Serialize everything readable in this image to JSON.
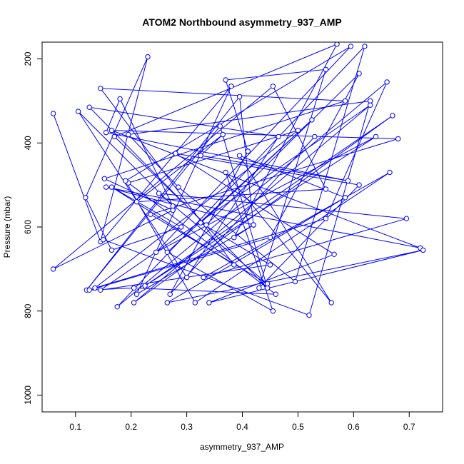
{
  "chart_data": {
    "type": "line",
    "title": "ATOM2 Northbound asymmetry_937_AMP",
    "xlabel": "asymmetry_937_AMP",
    "ylabel": "Pressure (mbar)",
    "xlim": [
      0.04,
      0.76
    ],
    "ylim": [
      1040,
      160
    ],
    "y_reversed": true,
    "x_ticks": [
      0.1,
      0.2,
      0.3,
      0.4,
      0.5,
      0.6,
      0.7
    ],
    "x_tick_labels": [
      "0.1",
      "0.2",
      "0.3",
      "0.4",
      "0.5",
      "0.6",
      "0.7"
    ],
    "y_ticks": [
      200,
      400,
      600,
      800,
      1000
    ],
    "y_tick_labels": [
      "200",
      "400",
      "600",
      "800",
      "1000"
    ],
    "grid": false,
    "series": [
      {
        "color": "#0000ff",
        "marker": "open-circle",
        "x": [
          0.06,
          0.145,
          0.23,
          0.118,
          0.165,
          0.29,
          0.165,
          0.385,
          0.145,
          0.585,
          0.152,
          0.275,
          0.06,
          0.455,
          0.55,
          0.21,
          0.365,
          0.325,
          0.59,
          0.155,
          0.18,
          0.275,
          0.105,
          0.3,
          0.465,
          0.125,
          0.445,
          0.36,
          0.12,
          0.395,
          0.42,
          0.385,
          0.57,
          0.17,
          0.335,
          0.61,
          0.45,
          0.125,
          0.205,
          0.46,
          0.195,
          0.5,
          0.135,
          0.55,
          0.66,
          0.175,
          0.62,
          0.495,
          0.285,
          0.195,
          0.63,
          0.52,
          0.15,
          0.38,
          0.21,
          0.42,
          0.155,
          0.72,
          0.165,
          0.68,
          0.235,
          0.445,
          0.25,
          0.695,
          0.33,
          0.665,
          0.315,
          0.19,
          0.595,
          0.245,
          0.64,
          0.225,
          0.67,
          0.205,
          0.63,
          0.145,
          0.45,
          0.325,
          0.525,
          0.265,
          0.455,
          0.37,
          0.56,
          0.395,
          0.585,
          0.265,
          0.725,
          0.34,
          0.565,
          0.28,
          0.61,
          0.43,
          0.55,
          0.37,
          0.41,
          0.27,
          0.53
        ],
        "y": [
          330,
          635,
          195,
          530,
          655,
          600,
          505,
          690,
          270,
          300,
          485,
          560,
          700,
          265,
          510,
          540,
          380,
          430,
          490,
          375,
          295,
          550,
          325,
          720,
          385,
          315,
          745,
          360,
          750,
          290,
          595,
          625,
          165,
          385,
          595,
          235,
          625,
          750,
          745,
          760,
          495,
          370,
          745,
          580,
          255,
          790,
          170,
          730,
          505,
          380,
          300,
          810,
          630,
          265,
          760,
          595,
          505,
          650,
          370,
          390,
          570,
          735,
          520,
          580,
          720,
          470,
          780,
          490,
          170,
          660,
          385,
          740,
          335,
          780,
          310,
          750,
          690,
          590,
          345,
          660,
          800,
          470,
          780,
          430,
          530,
          780,
          655,
          780,
          665,
          425,
          500,
          745,
          225,
          250,
          420,
          760,
          385
        ]
      }
    ]
  }
}
